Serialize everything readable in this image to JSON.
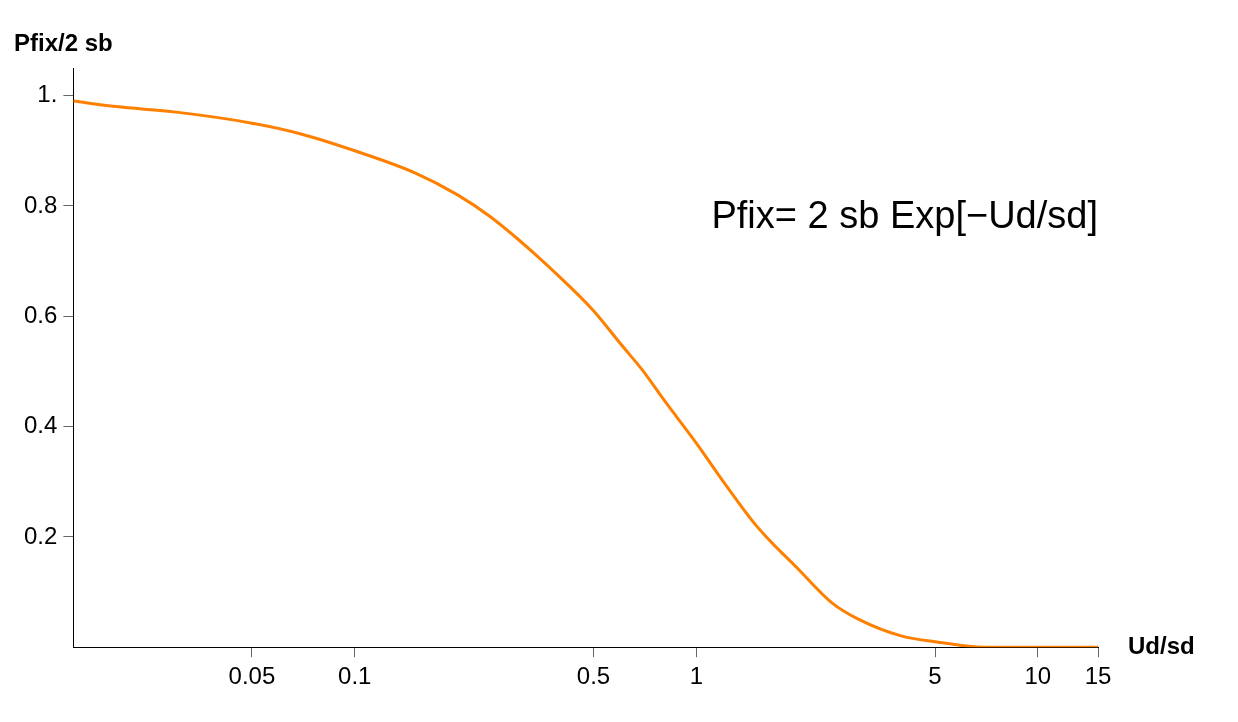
{
  "chart_data": {
    "type": "line",
    "xlabel": "Ud/sd",
    "ylabel": "Pfix/2 sb",
    "annotations": [
      "Pfix= 2 sb Exp[−Ud/sd]"
    ],
    "log": "x",
    "xlim": [
      0.015,
      15
    ],
    "ylim": [
      0,
      1.05
    ],
    "xticks": [
      0.05,
      0.1,
      0.5,
      1,
      5,
      10,
      15
    ],
    "yticks": [
      0.2,
      0.4,
      0.6,
      0.8,
      {
        "value": 1,
        "label": "1."
      }
    ],
    "grid": false,
    "legend": false,
    "marker": "none",
    "line_style": "solid",
    "x": [
      0.015,
      0.02,
      0.03,
      0.05,
      0.07,
      0.1,
      0.15,
      0.2,
      0.25,
      0.3,
      0.4,
      0.5,
      0.6,
      0.7,
      0.8,
      1,
      1.2,
      1.5,
      2,
      2.5,
      3,
      4,
      5,
      7,
      10,
      15
    ],
    "series": [
      {
        "color": "#ff8000",
        "values": [
          0.99,
          0.98,
          0.97,
          0.95,
          0.93,
          0.9,
          0.86,
          0.82,
          0.78,
          0.74,
          0.67,
          0.61,
          0.55,
          0.5,
          0.45,
          0.37,
          0.3,
          0.22,
          0.14,
          0.08,
          0.05,
          0.02,
          0.01,
          0,
          0,
          0
        ]
      }
    ]
  }
}
